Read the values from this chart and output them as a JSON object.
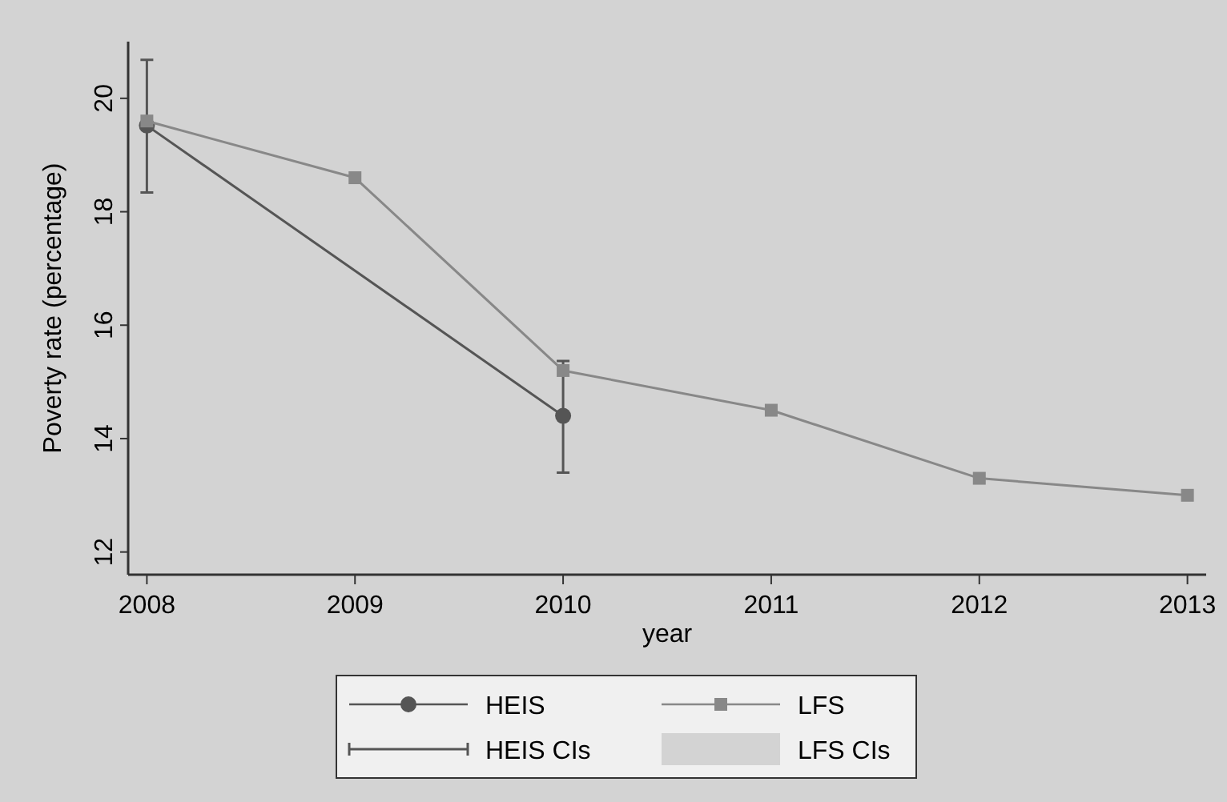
{
  "chart_data": {
    "type": "line",
    "xlabel": "year",
    "ylabel": "Poverty rate (percentage)",
    "x": [
      2008,
      2009,
      2010,
      2011,
      2012,
      2013
    ],
    "xlim": [
      2007.91,
      2013.09
    ],
    "xticks": [
      2008,
      2009,
      2010,
      2011,
      2012,
      2013
    ],
    "ylim": [
      11.6,
      21.0
    ],
    "yticks": [
      12,
      14,
      16,
      18,
      20
    ],
    "series": [
      {
        "name": "HEIS",
        "color": "#555555",
        "marker": "circle",
        "values": [
          19.52,
          null,
          14.4,
          null,
          null,
          null
        ],
        "errors": [
          [
            18.34,
            20.68
          ],
          null,
          [
            13.4,
            15.37
          ],
          null,
          null,
          null
        ]
      },
      {
        "name": "LFS",
        "color": "#888888",
        "marker": "square",
        "values": [
          19.6,
          18.6,
          15.2,
          14.5,
          13.3,
          13.0
        ]
      },
      {
        "name": "HEIS CIs",
        "type": "scatter",
        "color": "#555555",
        "values": [
          null,
          null,
          null,
          null,
          null,
          null
        ]
      },
      {
        "name": "LFS CIs",
        "type": "area",
        "color": "#d3d3d3",
        "values": [
          null,
          null,
          null,
          null,
          null,
          null
        ]
      }
    ],
    "grid": false,
    "legend": "bottom"
  }
}
